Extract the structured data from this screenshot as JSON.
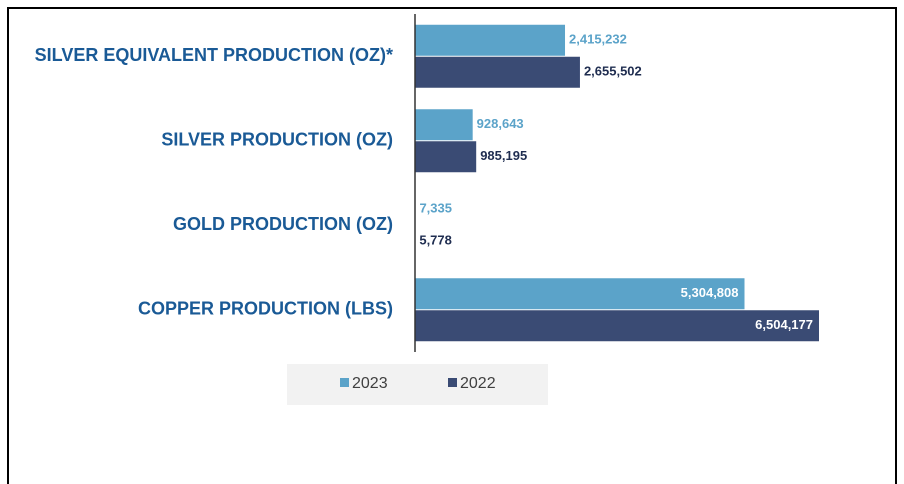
{
  "chart_data": {
    "type": "hbar",
    "categories": [
      "SILVER EQUIVALENT PRODUCTION (OZ)*",
      "SILVER PRODUCTION (OZ)",
      "GOLD PRODUCTION (OZ)",
      "COPPER PRODUCTION (LBS)"
    ],
    "series": [
      {
        "name": "2023",
        "color": "#5ba3c9",
        "label_color": "#5ba3c9",
        "values": [
          2415232,
          928643,
          7335,
          5304808
        ],
        "value_labels": [
          "2,415,232",
          "928,643",
          "7,335",
          "5,304,808"
        ]
      },
      {
        "name": "2022",
        "color": "#3a4b74",
        "label_color": "#1f2d50",
        "values": [
          2655502,
          985195,
          5778,
          6504177
        ],
        "value_labels": [
          "2,655,502",
          "985,195",
          "5,778",
          "6,504,177"
        ]
      }
    ],
    "legend": "bottom"
  }
}
